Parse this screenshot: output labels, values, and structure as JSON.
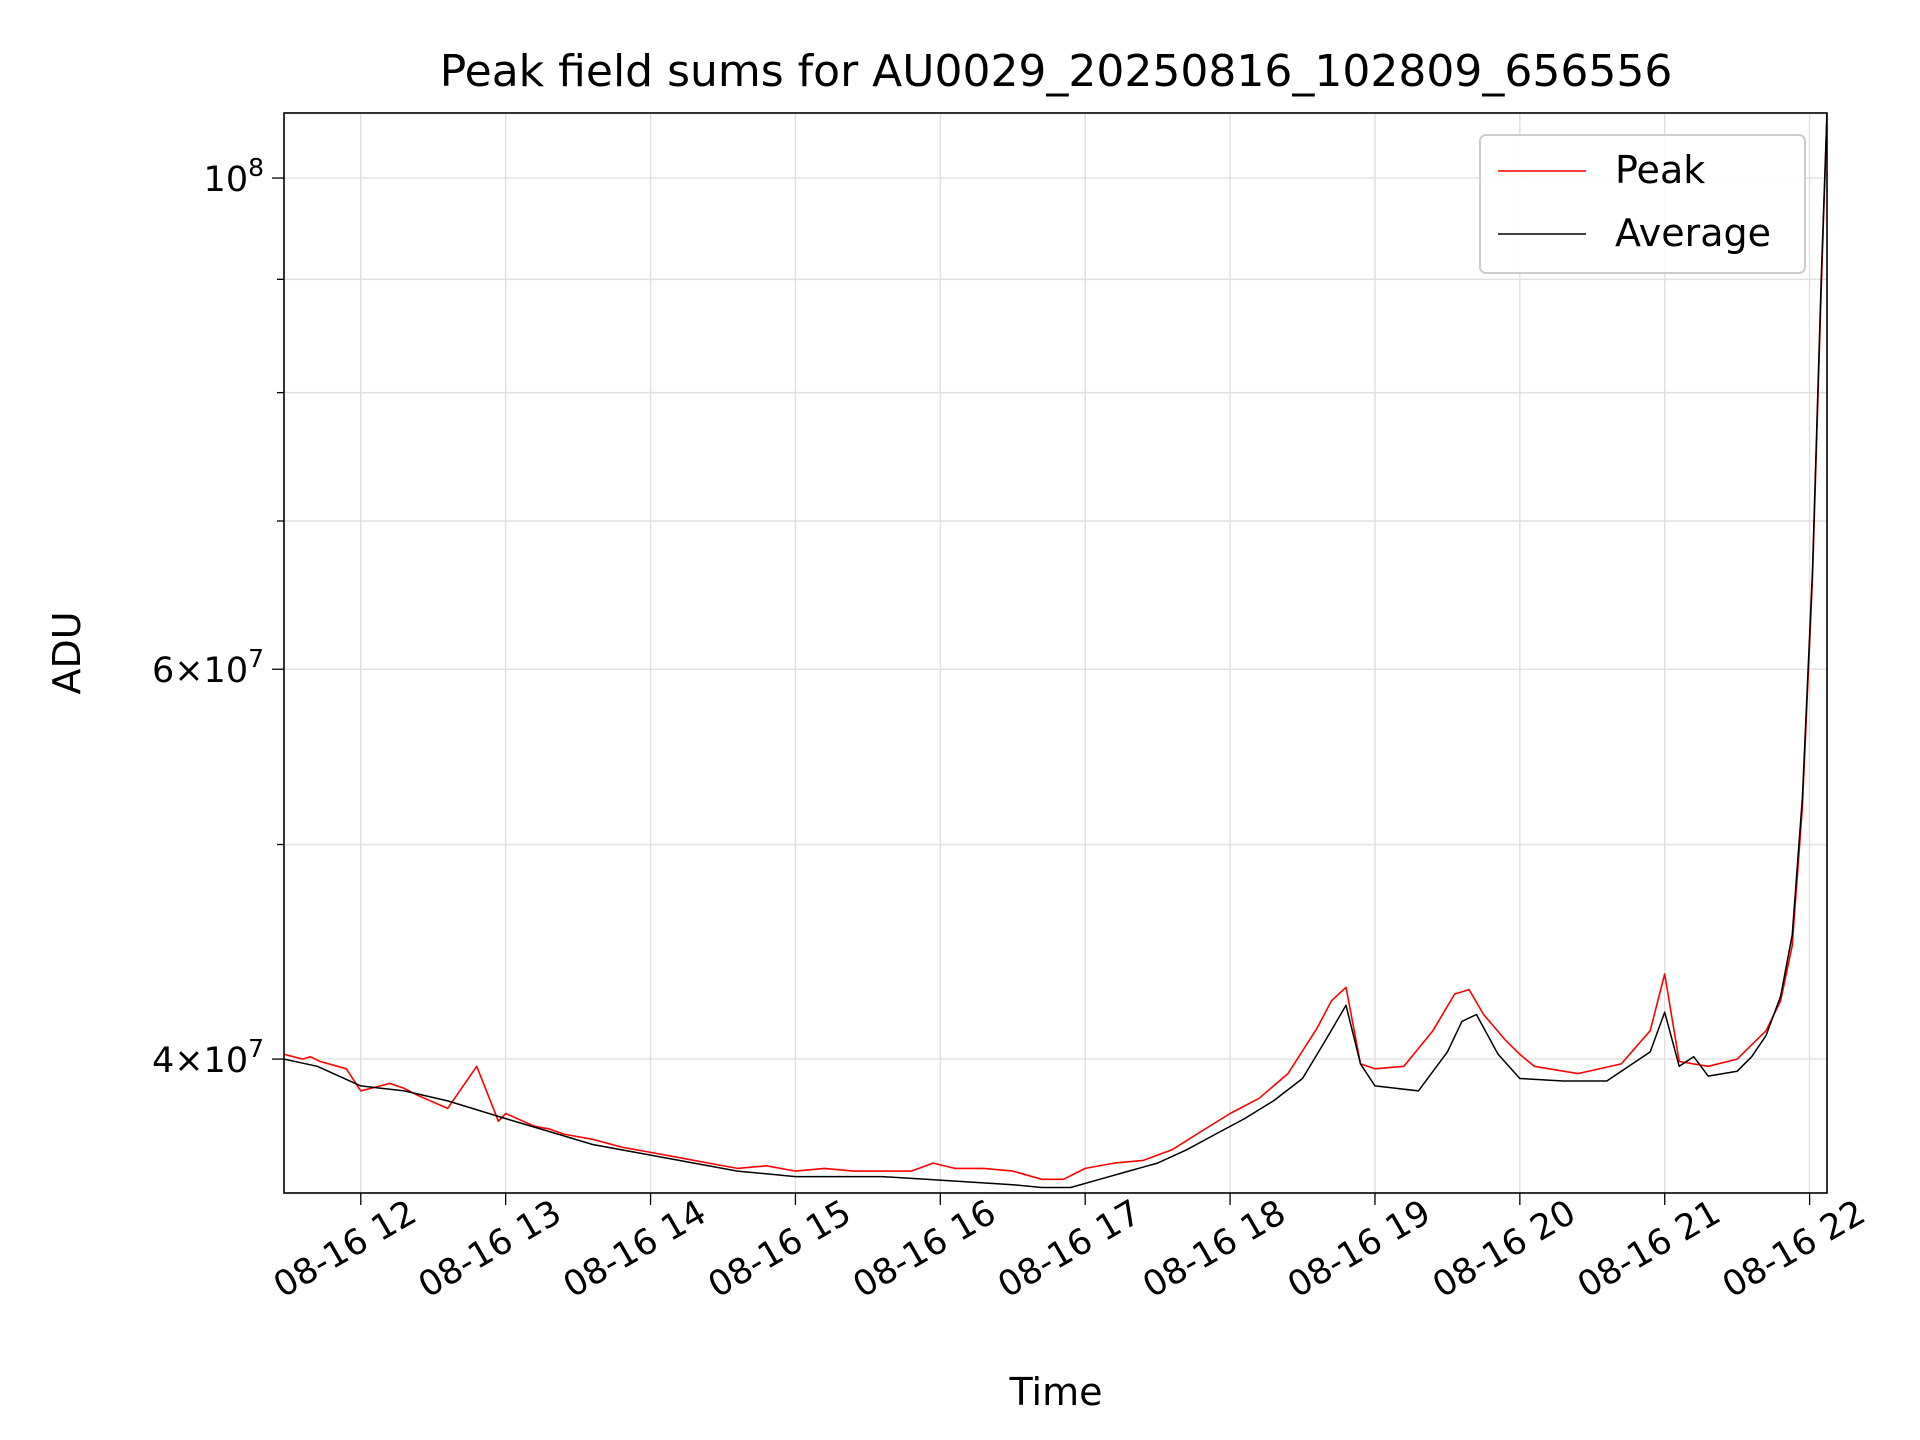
{
  "chart_data": {
    "type": "line",
    "title": "Peak field sums for AU0029_20250816_102809_656556",
    "xlabel": "Time",
    "ylabel": "ADU",
    "y_scale": "log",
    "x_unit": "hour",
    "xlim": [
      11.47,
      22.12
    ],
    "ylim": [
      34800000,
      107000000
    ],
    "x_ticks": [
      {
        "value": 12,
        "label": "08-16 12"
      },
      {
        "value": 13,
        "label": "08-16 13"
      },
      {
        "value": 14,
        "label": "08-16 14"
      },
      {
        "value": 15,
        "label": "08-16 15"
      },
      {
        "value": 16,
        "label": "08-16 16"
      },
      {
        "value": 17,
        "label": "08-16 17"
      },
      {
        "value": 18,
        "label": "08-16 18"
      },
      {
        "value": 19,
        "label": "08-16 19"
      },
      {
        "value": 20,
        "label": "08-16 20"
      },
      {
        "value": 21,
        "label": "08-16 21"
      },
      {
        "value": 22,
        "label": "08-16 22"
      }
    ],
    "y_ticks": [
      {
        "value": 40000000,
        "mantissa": "4",
        "base": "10",
        "exp": "7"
      },
      {
        "value": 60000000,
        "mantissa": "6",
        "base": "10",
        "exp": "7"
      },
      {
        "value": 100000000,
        "mantissa": "",
        "base": "10",
        "exp": "8"
      }
    ],
    "y_minor_ticks": [
      50000000,
      70000000,
      80000000,
      90000000
    ],
    "grid": true,
    "legend_position": "top-right",
    "series": [
      {
        "name": "Peak",
        "color": "#ff0000",
        "x": [
          11.47,
          11.6,
          11.65,
          11.72,
          11.9,
          12.0,
          12.2,
          12.3,
          12.4,
          12.6,
          12.8,
          12.95,
          13.0,
          13.2,
          13.3,
          13.4,
          13.6,
          13.8,
          14.0,
          14.2,
          14.4,
          14.6,
          14.8,
          15.0,
          15.2,
          15.4,
          15.6,
          15.8,
          15.95,
          16.1,
          16.3,
          16.5,
          16.7,
          16.85,
          17.0,
          17.2,
          17.4,
          17.6,
          17.8,
          18.0,
          18.2,
          18.4,
          18.6,
          18.7,
          18.8,
          18.9,
          19.0,
          19.2,
          19.4,
          19.55,
          19.65,
          19.75,
          19.9,
          20.0,
          20.1,
          20.4,
          20.7,
          20.9,
          21.0,
          21.1,
          21.3,
          21.5,
          21.6,
          21.7,
          21.8,
          21.88,
          21.95,
          22.02,
          22.08,
          22.12
        ],
        "y": [
          40200000,
          40000000,
          40100000,
          39900000,
          39600000,
          38700000,
          39000000,
          38800000,
          38500000,
          38000000,
          39700000,
          37500000,
          37800000,
          37300000,
          37200000,
          37000000,
          36800000,
          36500000,
          36300000,
          36100000,
          35900000,
          35700000,
          35800000,
          35600000,
          35700000,
          35600000,
          35600000,
          35600000,
          35900000,
          35700000,
          35700000,
          35600000,
          35300000,
          35300000,
          35700000,
          35900000,
          36000000,
          36400000,
          37100000,
          37800000,
          38400000,
          39400000,
          41300000,
          42500000,
          43100000,
          39800000,
          39600000,
          39700000,
          41200000,
          42800000,
          43000000,
          41900000,
          40800000,
          40200000,
          39700000,
          39400000,
          39800000,
          41200000,
          43700000,
          39900000,
          39700000,
          40000000,
          40600000,
          41200000,
          42500000,
          45000000,
          52000000,
          66000000,
          89000000,
          107000000
        ]
      },
      {
        "name": "Average",
        "color": "#000000",
        "x": [
          11.47,
          11.7,
          12.0,
          12.3,
          12.6,
          13.0,
          13.3,
          13.6,
          14.0,
          14.3,
          14.6,
          15.0,
          15.3,
          15.6,
          15.9,
          16.2,
          16.5,
          16.7,
          16.9,
          17.1,
          17.3,
          17.5,
          17.7,
          17.9,
          18.1,
          18.3,
          18.5,
          18.65,
          18.8,
          18.9,
          19.0,
          19.3,
          19.5,
          19.6,
          19.7,
          19.85,
          20.0,
          20.3,
          20.6,
          20.9,
          21.0,
          21.1,
          21.2,
          21.3,
          21.5,
          21.6,
          21.7,
          21.8,
          21.88,
          21.95,
          22.02,
          22.08,
          22.12
        ],
        "y": [
          40000000,
          39700000,
          38900000,
          38700000,
          38300000,
          37600000,
          37100000,
          36600000,
          36200000,
          35900000,
          35600000,
          35400000,
          35400000,
          35400000,
          35300000,
          35200000,
          35100000,
          35000000,
          35000000,
          35300000,
          35600000,
          35900000,
          36400000,
          37000000,
          37600000,
          38300000,
          39200000,
          40700000,
          42300000,
          39800000,
          38900000,
          38700000,
          40300000,
          41600000,
          41900000,
          40200000,
          39200000,
          39100000,
          39100000,
          40300000,
          42000000,
          39700000,
          40100000,
          39300000,
          39500000,
          40100000,
          41000000,
          42700000,
          45500000,
          52500000,
          66500000,
          90000000,
          107000000
        ]
      }
    ]
  }
}
